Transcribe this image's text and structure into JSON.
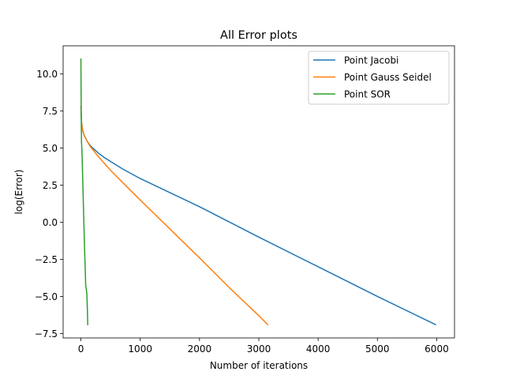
{
  "chart_data": {
    "type": "line",
    "title": "All Error plots",
    "xlabel": "Number of iterations",
    "ylabel": "log(Error)",
    "xlim": [
      -300,
      6300
    ],
    "ylim": [
      -7.8,
      11.9
    ],
    "xticks": [
      0,
      1000,
      2000,
      3000,
      4000,
      5000,
      6000
    ],
    "yticks": [
      -7.5,
      -5.0,
      -2.5,
      0.0,
      2.5,
      5.0,
      7.5,
      10.0
    ],
    "xtick_labels": [
      "0",
      "1000",
      "2000",
      "3000",
      "4000",
      "5000",
      "6000"
    ],
    "ytick_labels": [
      "−7.5",
      "−5.0",
      "−2.5",
      "0.0",
      "2.5",
      "5.0",
      "7.5",
      "10.0"
    ],
    "grid": false,
    "legend_position": "top-right",
    "series": [
      {
        "name": "Point Jacobi",
        "color": "#1f77b4",
        "x": [
          0,
          10,
          25,
          50,
          100,
          150,
          200,
          300,
          400,
          500,
          700,
          1000,
          1500,
          2000,
          3000,
          4000,
          5000,
          5980
        ],
        "y": [
          7.8,
          6.8,
          6.3,
          5.9,
          5.5,
          5.2,
          5.0,
          4.65,
          4.35,
          4.1,
          3.6,
          2.95,
          2.0,
          1.05,
          -1.0,
          -3.0,
          -5.0,
          -6.9
        ]
      },
      {
        "name": "Point Gauss Seidel",
        "color": "#ff7f0e",
        "x": [
          0,
          10,
          25,
          50,
          100,
          150,
          200,
          300,
          400,
          500,
          700,
          1000,
          1500,
          2000,
          2500,
          3000,
          3150
        ],
        "y": [
          7.8,
          6.8,
          6.3,
          5.9,
          5.5,
          5.15,
          4.9,
          4.4,
          3.95,
          3.5,
          2.7,
          1.5,
          -0.45,
          -2.4,
          -4.4,
          -6.3,
          -6.9
        ]
      },
      {
        "name": "Point SOR",
        "color": "#2ca02c",
        "x": [
          0,
          2,
          4,
          6,
          8,
          10,
          15,
          20,
          30,
          40,
          60,
          80,
          100,
          110,
          115
        ],
        "y": [
          11.0,
          9.5,
          8.0,
          6.8,
          6.0,
          5.4,
          5.0,
          4.5,
          3.0,
          1.4,
          -1.5,
          -4.2,
          -4.8,
          -6.0,
          -6.9
        ]
      }
    ]
  }
}
